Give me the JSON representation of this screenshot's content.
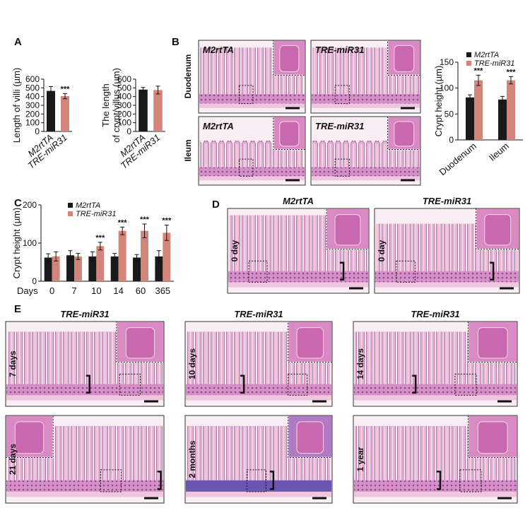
{
  "panel_letters": [
    "A",
    "B",
    "C",
    "D",
    "E"
  ],
  "chart_data": [
    {
      "type": "bar",
      "ylabel": "Length of villi (µm)",
      "categories": [
        "M2rtTA",
        "TRE-miR31"
      ],
      "values": [
        465,
        405
      ],
      "errors": [
        50,
        30
      ],
      "colors": [
        "#1a1a1a",
        "#d4857a"
      ],
      "annotations": [
        null,
        "***"
      ],
      "ylim": [
        0,
        600
      ],
      "yticks": [
        0,
        100,
        200,
        300,
        400,
        500,
        600
      ]
    },
    {
      "type": "bar",
      "ylabel": [
        "The length",
        "of crypt/villus (µm)"
      ],
      "categories": [
        "M2rtTA",
        "TRE-miR31"
      ],
      "values": [
        480,
        475
      ],
      "errors": [
        25,
        45
      ],
      "colors": [
        "#1a1a1a",
        "#d4857a"
      ],
      "ylim": [
        0,
        600
      ],
      "yticks": [
        0,
        100,
        200,
        300,
        400,
        500,
        600
      ]
    },
    {
      "type": "grouped_bar",
      "ylabel": "Crypt height (µm)",
      "categories": [
        "Duodenum",
        "Ileum"
      ],
      "series": [
        {
          "name": "M2rtTA",
          "color": "#1a1a1a",
          "values": [
            82,
            78
          ],
          "errors": [
            5,
            6
          ]
        },
        {
          "name": "TRE-miR31",
          "color": "#d4857a",
          "values": [
            115,
            115
          ],
          "errors": [
            10,
            7
          ],
          "annotations": [
            "***",
            "***"
          ]
        }
      ],
      "ylim": [
        0,
        150
      ],
      "yticks": [
        0,
        50,
        100,
        150
      ]
    },
    {
      "type": "grouped_bar",
      "ylabel": "Crypt height (µm)",
      "xlabel": "Days",
      "categories": [
        "0",
        "7",
        "10",
        "14",
        "60",
        "365"
      ],
      "series": [
        {
          "name": "M2rtTA",
          "color": "#1a1a1a",
          "values": [
            62,
            68,
            65,
            65,
            62,
            65
          ],
          "errors": [
            10,
            12,
            12,
            8,
            8,
            15
          ]
        },
        {
          "name": "TRE-miR31",
          "color": "#d4857a",
          "values": [
            65,
            65,
            92,
            132,
            132,
            127
          ],
          "errors": [
            12,
            8,
            10,
            10,
            18,
            20
          ],
          "annotations": [
            null,
            null,
            "***",
            "***",
            "***",
            "***"
          ]
        }
      ],
      "ylim": [
        0,
        200
      ],
      "yticks": [
        0,
        100,
        200
      ]
    }
  ],
  "panel_b": {
    "rows": [
      "Duodenum",
      "Ileum"
    ],
    "images": [
      "M2rtTA",
      "TRE-miR31",
      "M2rtTA",
      "TRE-miR31"
    ]
  },
  "panel_d": {
    "titles": [
      "M2rtTA",
      "TRE-miR31"
    ],
    "labels": [
      "0 day",
      "0 day"
    ]
  },
  "panel_e": {
    "titles": [
      "TRE-miR31",
      "TRE-miR31",
      "TRE-miR31"
    ],
    "labels": [
      "7 days",
      "10 days",
      "14 days",
      "21 days",
      "2 months",
      "1 year"
    ]
  }
}
